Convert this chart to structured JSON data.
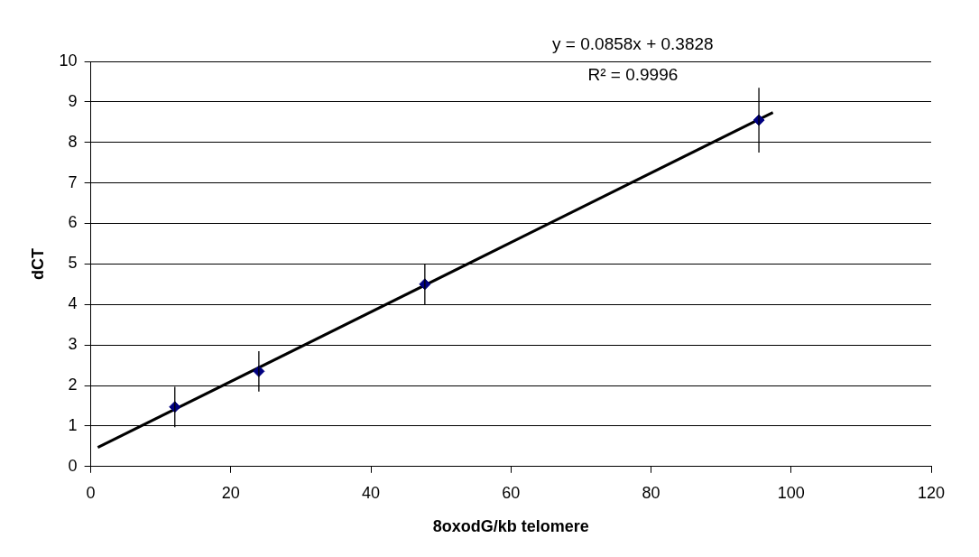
{
  "chart_data": {
    "type": "scatter",
    "xlabel": "8oxodG/kb telomere",
    "ylabel": "dCT",
    "xlim": [
      0,
      120
    ],
    "xticks": [
      0,
      20,
      40,
      60,
      80,
      100,
      120
    ],
    "ylim": [
      0,
      10
    ],
    "yticks": [
      0,
      1,
      2,
      3,
      4,
      5,
      6,
      7,
      8,
      9,
      10
    ],
    "grid": "y",
    "legend": false,
    "marker": "diamond",
    "annotations": [
      "y = 0.0858x + 0.3828",
      "R² = 0.9996"
    ],
    "series": [
      {
        "type": "scatter",
        "color": "#000080",
        "x": [
          12,
          24,
          47.7,
          95.4
        ],
        "values": [
          1.47,
          2.35,
          4.5,
          8.55
        ],
        "errors": [
          0.5,
          0.5,
          0.5,
          0.8
        ]
      },
      {
        "type": "line",
        "color": "#000000",
        "marker": "none",
        "line_style": "solid",
        "x": [
          1,
          97.4
        ],
        "values": [
          0.47,
          8.74
        ]
      }
    ]
  }
}
